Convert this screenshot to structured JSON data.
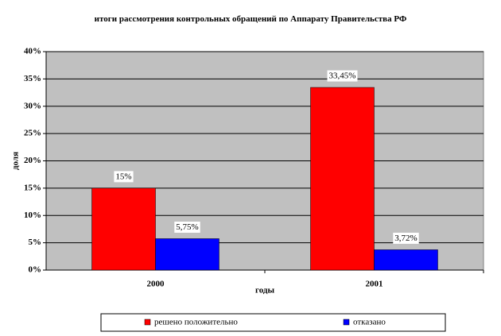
{
  "chart_data": {
    "type": "bar",
    "title": "итоги рассмотрения контрольных обращений по Аппарату Правительства РФ",
    "x_label": "годы",
    "y_label": "доля",
    "categories": [
      "2000",
      "2001"
    ],
    "series": [
      {
        "name": "решено положительно",
        "color": "#ff0000",
        "values": [
          15,
          33.45
        ],
        "value_labels": [
          "15%",
          "33,45%"
        ]
      },
      {
        "name": "отказано",
        "color": "#0000ff",
        "values": [
          5.75,
          3.72
        ],
        "value_labels": [
          "5,75%",
          "3,72%"
        ]
      }
    ],
    "ylim": [
      0,
      40
    ],
    "yticks": [
      {
        "value": 0,
        "label": "0%"
      },
      {
        "value": 5,
        "label": "5%"
      },
      {
        "value": 10,
        "label": "10%"
      },
      {
        "value": 15,
        "label": "15%"
      },
      {
        "value": 20,
        "label": "20%"
      },
      {
        "value": 25,
        "label": "25%"
      },
      {
        "value": 30,
        "label": "30%"
      },
      {
        "value": 35,
        "label": "35%"
      },
      {
        "value": 40,
        "label": "40%"
      }
    ],
    "grid": true,
    "legend": "bottom",
    "plot_background": "#c0c0c0"
  }
}
